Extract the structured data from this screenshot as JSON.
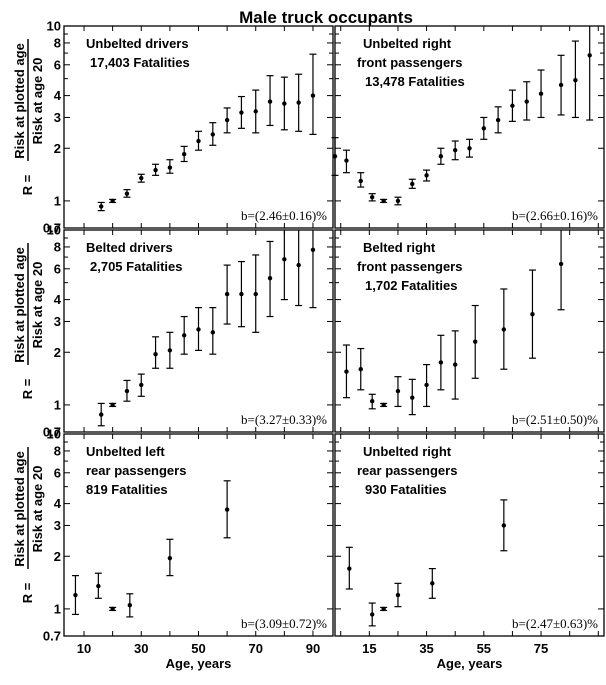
{
  "figure": {
    "title": "Male truck occupants",
    "ylabel_numerator": "Risk at plotted age",
    "ylabel_denominator": "Risk at age 20",
    "ylabel_prefix": "R =",
    "xlabel": "Age, years"
  },
  "chart_data": [
    {
      "type": "scatter",
      "panel": "top-left",
      "name": "Unbelted drivers",
      "annotation": [
        "Unbelted drivers",
        "17,403 Fatalities"
      ],
      "b_label": "b=(2.46±0.16)%",
      "yscale": "log",
      "ylim": [
        0.7,
        10
      ],
      "xlim": [
        3,
        97
      ],
      "yticks": [
        0.7,
        1,
        2,
        3,
        4,
        5,
        6,
        7,
        8,
        9,
        10
      ],
      "yticklabels": [
        "0.7",
        "1",
        "2",
        "3",
        "4",
        "",
        "6",
        "",
        "8",
        "",
        "10"
      ],
      "points": [
        {
          "x": 16,
          "y": 0.93,
          "lo": 0.88,
          "hi": 0.98
        },
        {
          "x": 20,
          "y": 1.0,
          "lo": 0.98,
          "hi": 1.02
        },
        {
          "x": 25,
          "y": 1.1,
          "lo": 1.05,
          "hi": 1.16
        },
        {
          "x": 30,
          "y": 1.35,
          "lo": 1.28,
          "hi": 1.42
        },
        {
          "x": 35,
          "y": 1.5,
          "lo": 1.4,
          "hi": 1.62
        },
        {
          "x": 40,
          "y": 1.55,
          "lo": 1.44,
          "hi": 1.72
        },
        {
          "x": 45,
          "y": 1.85,
          "lo": 1.68,
          "hi": 2.05
        },
        {
          "x": 50,
          "y": 2.2,
          "lo": 1.95,
          "hi": 2.5
        },
        {
          "x": 55,
          "y": 2.4,
          "lo": 2.08,
          "hi": 2.8
        },
        {
          "x": 60,
          "y": 2.9,
          "lo": 2.45,
          "hi": 3.4
        },
        {
          "x": 65,
          "y": 3.2,
          "lo": 2.6,
          "hi": 3.95
        },
        {
          "x": 70,
          "y": 3.25,
          "lo": 2.45,
          "hi": 4.3
        },
        {
          "x": 75,
          "y": 3.7,
          "lo": 2.7,
          "hi": 5.2
        },
        {
          "x": 80,
          "y": 3.6,
          "lo": 2.55,
          "hi": 5.1
        },
        {
          "x": 85,
          "y": 3.65,
          "lo": 2.5,
          "hi": 5.3
        },
        {
          "x": 90,
          "y": 4.0,
          "lo": 2.4,
          "hi": 6.9
        }
      ]
    },
    {
      "type": "scatter",
      "panel": "top-right",
      "name": "Unbelted right front passengers",
      "annotation": [
        "Unbelted right",
        "front passengers",
        "13,478 Fatalities"
      ],
      "b_label": "b=(2.66±0.16)%",
      "yscale": "log",
      "ylim": [
        0.7,
        10
      ],
      "xlim": [
        3,
        97
      ],
      "points": [
        {
          "x": 3,
          "y": 1.8,
          "lo": 1.4,
          "hi": 2.3
        },
        {
          "x": 7,
          "y": 1.7,
          "lo": 1.45,
          "hi": 1.95
        },
        {
          "x": 12,
          "y": 1.3,
          "lo": 1.2,
          "hi": 1.45
        },
        {
          "x": 16,
          "y": 1.05,
          "lo": 1.0,
          "hi": 1.1
        },
        {
          "x": 20,
          "y": 1.0,
          "lo": 0.98,
          "hi": 1.02
        },
        {
          "x": 25,
          "y": 1.0,
          "lo": 0.95,
          "hi": 1.05
        },
        {
          "x": 30,
          "y": 1.25,
          "lo": 1.18,
          "hi": 1.33
        },
        {
          "x": 35,
          "y": 1.4,
          "lo": 1.3,
          "hi": 1.5
        },
        {
          "x": 40,
          "y": 1.8,
          "lo": 1.62,
          "hi": 2.0
        },
        {
          "x": 45,
          "y": 1.95,
          "lo": 1.72,
          "hi": 2.2
        },
        {
          "x": 50,
          "y": 2.0,
          "lo": 1.78,
          "hi": 2.25
        },
        {
          "x": 55,
          "y": 2.6,
          "lo": 2.25,
          "hi": 3.0
        },
        {
          "x": 60,
          "y": 2.9,
          "lo": 2.45,
          "hi": 3.45
        },
        {
          "x": 65,
          "y": 3.5,
          "lo": 2.85,
          "hi": 4.3
        },
        {
          "x": 70,
          "y": 3.7,
          "lo": 2.9,
          "hi": 4.8
        },
        {
          "x": 75,
          "y": 4.1,
          "lo": 3.0,
          "hi": 5.6
        },
        {
          "x": 82,
          "y": 4.6,
          "lo": 3.1,
          "hi": 6.8
        },
        {
          "x": 87,
          "y": 4.9,
          "lo": 3.0,
          "hi": 8.2
        },
        {
          "x": 92,
          "y": 6.8,
          "lo": 2.9,
          "hi": 10
        }
      ]
    },
    {
      "type": "scatter",
      "panel": "middle-left",
      "name": "Belted drivers",
      "annotation": [
        "Belted drivers",
        "2,705 Fatalities"
      ],
      "b_label": "b=(3.27±0.33)%",
      "yscale": "log",
      "ylim": [
        0.7,
        10
      ],
      "xlim": [
        3,
        97
      ],
      "points": [
        {
          "x": 16,
          "y": 0.88,
          "lo": 0.76,
          "hi": 1.02
        },
        {
          "x": 20,
          "y": 1.0,
          "lo": 0.98,
          "hi": 1.02
        },
        {
          "x": 25,
          "y": 1.2,
          "lo": 1.05,
          "hi": 1.38
        },
        {
          "x": 30,
          "y": 1.3,
          "lo": 1.12,
          "hi": 1.5
        },
        {
          "x": 35,
          "y": 1.95,
          "lo": 1.62,
          "hi": 2.45
        },
        {
          "x": 40,
          "y": 2.05,
          "lo": 1.62,
          "hi": 2.6
        },
        {
          "x": 45,
          "y": 2.5,
          "lo": 1.95,
          "hi": 3.2
        },
        {
          "x": 50,
          "y": 2.7,
          "lo": 2.05,
          "hi": 3.6
        },
        {
          "x": 55,
          "y": 2.6,
          "lo": 1.95,
          "hi": 3.6
        },
        {
          "x": 60,
          "y": 4.3,
          "lo": 2.9,
          "hi": 6.3
        },
        {
          "x": 65,
          "y": 4.3,
          "lo": 2.8,
          "hi": 6.6
        },
        {
          "x": 70,
          "y": 4.3,
          "lo": 2.6,
          "hi": 7.2
        },
        {
          "x": 75,
          "y": 5.3,
          "lo": 3.2,
          "hi": 8.6
        },
        {
          "x": 80,
          "y": 6.8,
          "lo": 4.0,
          "hi": 10
        },
        {
          "x": 85,
          "y": 6.3,
          "lo": 3.7,
          "hi": 10
        },
        {
          "x": 90,
          "y": 7.7,
          "lo": 3.6,
          "hi": 10
        }
      ]
    },
    {
      "type": "scatter",
      "panel": "middle-right",
      "name": "Belted right front passengers",
      "annotation": [
        "Belted right",
        "front passengers",
        "1,702 Fatalities"
      ],
      "b_label": "b=(2.51±0.50)%",
      "yscale": "log",
      "ylim": [
        0.7,
        10
      ],
      "xlim": [
        3,
        97
      ],
      "points": [
        {
          "x": 7,
          "y": 1.55,
          "lo": 1.1,
          "hi": 2.2
        },
        {
          "x": 12,
          "y": 1.6,
          "lo": 1.22,
          "hi": 2.1
        },
        {
          "x": 16,
          "y": 1.05,
          "lo": 0.95,
          "hi": 1.15
        },
        {
          "x": 20,
          "y": 1.0,
          "lo": 0.98,
          "hi": 1.02
        },
        {
          "x": 25,
          "y": 1.2,
          "lo": 0.98,
          "hi": 1.45
        },
        {
          "x": 30,
          "y": 1.1,
          "lo": 0.88,
          "hi": 1.4
        },
        {
          "x": 35,
          "y": 1.3,
          "lo": 0.98,
          "hi": 1.7
        },
        {
          "x": 40,
          "y": 1.75,
          "lo": 1.22,
          "hi": 2.5
        },
        {
          "x": 45,
          "y": 1.7,
          "lo": 1.08,
          "hi": 2.65
        },
        {
          "x": 52,
          "y": 2.3,
          "lo": 1.42,
          "hi": 3.7
        },
        {
          "x": 62,
          "y": 2.7,
          "lo": 1.6,
          "hi": 4.6
        },
        {
          "x": 72,
          "y": 3.3,
          "lo": 1.85,
          "hi": 5.9
        },
        {
          "x": 82,
          "y": 6.4,
          "lo": 3.5,
          "hi": 10
        }
      ]
    },
    {
      "type": "scatter",
      "panel": "bottom-left",
      "name": "Unbelted left rear passengers",
      "annotation": [
        "Unbelted left",
        "rear passengers",
        "819 Fatalities"
      ],
      "b_label": "b=(3.09±0.72)%",
      "yscale": "log",
      "ylim": [
        0.7,
        10
      ],
      "xlim": [
        3,
        97
      ],
      "xticks": [
        10,
        30,
        50,
        70,
        90
      ],
      "points": [
        {
          "x": 7,
          "y": 1.2,
          "lo": 0.93,
          "hi": 1.55
        },
        {
          "x": 15,
          "y": 1.35,
          "lo": 1.15,
          "hi": 1.6
        },
        {
          "x": 20,
          "y": 1.0,
          "lo": 0.98,
          "hi": 1.02
        },
        {
          "x": 26,
          "y": 1.05,
          "lo": 0.9,
          "hi": 1.22
        },
        {
          "x": 40,
          "y": 1.95,
          "lo": 1.55,
          "hi": 2.5
        },
        {
          "x": 60,
          "y": 3.7,
          "lo": 2.55,
          "hi": 5.4
        }
      ]
    },
    {
      "type": "scatter",
      "panel": "bottom-right",
      "name": "Unbelted right rear passengers",
      "annotation": [
        "Unbelted right",
        "rear passengers",
        "930 Fatalities"
      ],
      "b_label": "b=(2.47±0.63)%",
      "yscale": "log",
      "ylim": [
        0.7,
        10
      ],
      "xlim": [
        3,
        97
      ],
      "xticks": [
        15,
        35,
        55,
        75,
        95
      ],
      "xticklabels": [
        "15",
        "35",
        "55",
        "75",
        ""
      ],
      "points": [
        {
          "x": 8,
          "y": 1.7,
          "lo": 1.3,
          "hi": 2.25
        },
        {
          "x": 16,
          "y": 0.93,
          "lo": 0.8,
          "hi": 1.08
        },
        {
          "x": 20,
          "y": 1.0,
          "lo": 0.98,
          "hi": 1.02
        },
        {
          "x": 25,
          "y": 1.2,
          "lo": 1.03,
          "hi": 1.4
        },
        {
          "x": 37,
          "y": 1.4,
          "lo": 1.15,
          "hi": 1.7
        },
        {
          "x": 62,
          "y": 3.0,
          "lo": 2.15,
          "hi": 4.2
        }
      ]
    }
  ]
}
